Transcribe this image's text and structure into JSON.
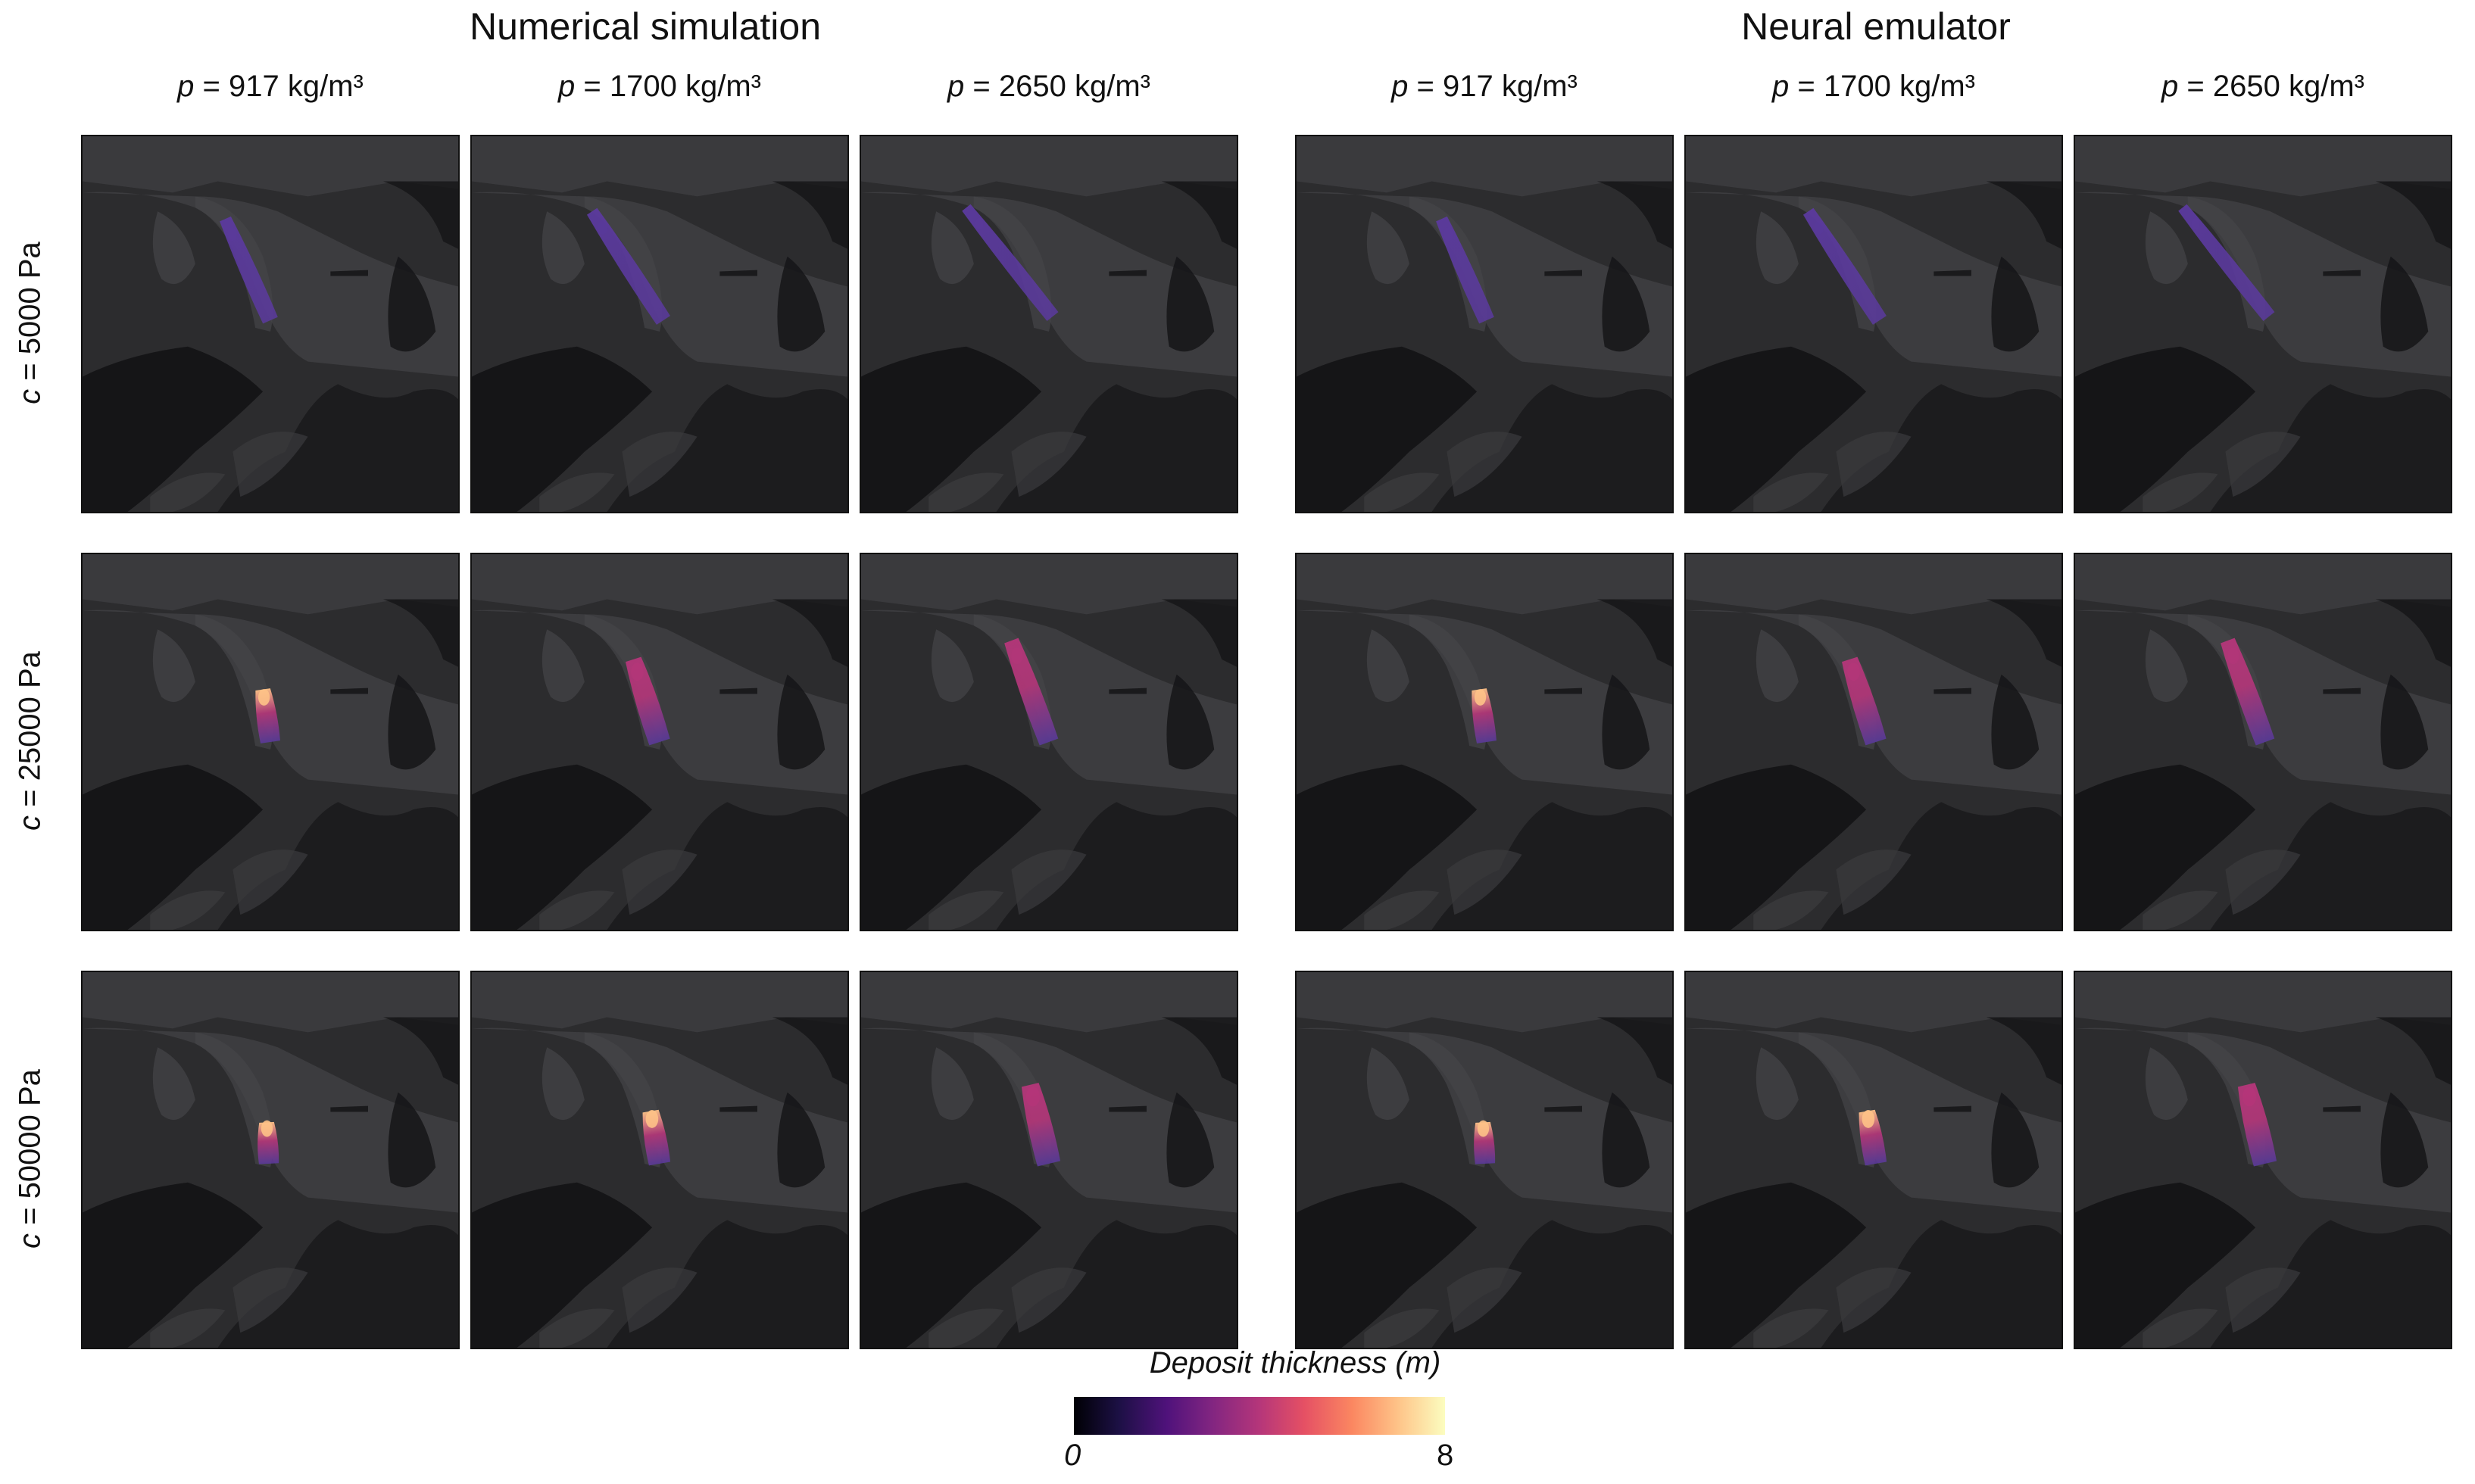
{
  "groups": [
    {
      "title": "Numerical simulation"
    },
    {
      "title": "Neural emulator"
    }
  ],
  "columns": [
    {
      "var": "p",
      "rest": " = 917 kg/m³"
    },
    {
      "var": "p",
      "rest": " = 1700 kg/m³"
    },
    {
      "var": "p",
      "rest": " = 2650 kg/m³"
    }
  ],
  "rows": [
    {
      "var": "c",
      "rest": " = 5000 Pa"
    },
    {
      "var": "c",
      "rest": " = 25000 Pa"
    },
    {
      "var": "c",
      "rest": " = 50000 Pa"
    }
  ],
  "colorbar": {
    "title": "Deposit thickness (m)",
    "min": "0",
    "max": "8",
    "colormap": "magma"
  },
  "colors": {
    "terrain_base": "#2c2c2e",
    "terrain_light": "#4a4a4c",
    "terrain_dark": "#151517",
    "deposit_low": "#5b3a9e",
    "deposit_mid": "#b5367a",
    "deposit_high": "#fec287"
  }
}
